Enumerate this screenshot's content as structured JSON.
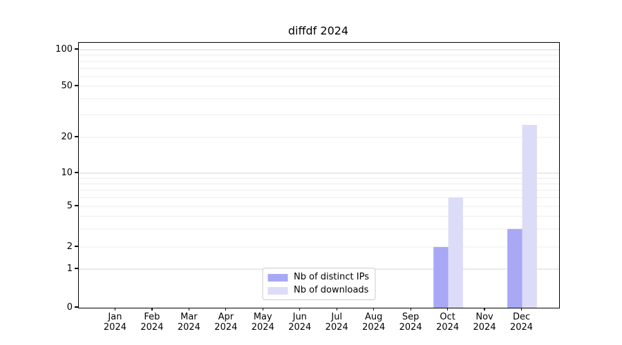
{
  "chart_data": {
    "type": "bar",
    "title": "diffdf 2024",
    "months": [
      "Jan",
      "Feb",
      "Mar",
      "Apr",
      "May",
      "Jun",
      "Jul",
      "Aug",
      "Sep",
      "Oct",
      "Nov",
      "Dec"
    ],
    "year": "2024",
    "series": [
      {
        "key": "distinct-ips",
        "name": "Nb of distinct IPs",
        "color": "#a8a8f5",
        "values": [
          0,
          0,
          0,
          0,
          0,
          0,
          0,
          0,
          0,
          2,
          0,
          3
        ]
      },
      {
        "key": "downloads",
        "name": "Nb of downloads",
        "color": "#dcdcf8",
        "values": [
          0,
          0,
          0,
          0,
          0,
          0,
          0,
          0,
          0,
          6,
          0,
          25
        ]
      }
    ],
    "y_axis": {
      "scale": "symlog",
      "range": [
        0,
        100
      ],
      "tick_labels": [
        0,
        1,
        2,
        5,
        10,
        20,
        50,
        100
      ],
      "major_gridlines": [
        1,
        10,
        100
      ],
      "minor_gridlines": [
        2,
        3,
        4,
        5,
        6,
        7,
        8,
        9,
        20,
        30,
        40,
        50,
        60,
        70,
        80,
        90
      ]
    },
    "legend": {
      "position": "lower center",
      "entries": [
        "Nb of distinct IPs",
        "Nb of downloads"
      ]
    },
    "grid": "horizontal-only"
  }
}
